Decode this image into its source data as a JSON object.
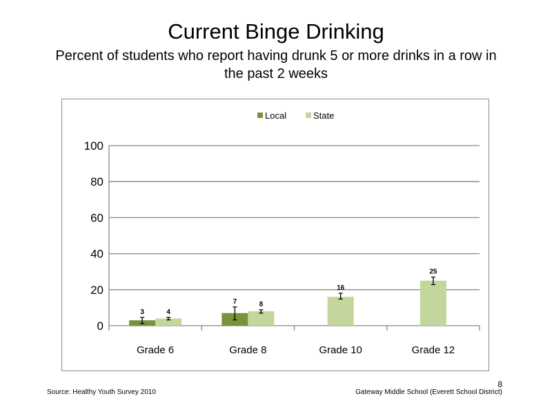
{
  "slide": {
    "title": "Current Binge Drinking",
    "subtitle": "Percent of students who report having drunk  5 or more drinks in a row in the past 2 weeks",
    "source": "Source: Healthy Youth Survey 2010",
    "school": "Gateway Middle  School  (Everett School District)",
    "page_number": "8"
  },
  "chart_data": {
    "type": "bar",
    "title": "",
    "xlabel": "",
    "ylabel": "",
    "categories": [
      "Grade 6",
      "Grade 8",
      "Grade 10",
      "Grade 12"
    ],
    "ylim": [
      0,
      100
    ],
    "yticks": [
      0,
      20,
      40,
      60,
      80,
      100
    ],
    "grid": true,
    "legend_position": "top-center",
    "series": [
      {
        "name": "Local",
        "color": "#77933c",
        "values": [
          3,
          7,
          null,
          null
        ],
        "labels": [
          "3",
          "7",
          "",
          ""
        ],
        "error_low": [
          1.2,
          3.2,
          null,
          null
        ],
        "error_high": [
          4.6,
          10.4,
          null,
          null
        ]
      },
      {
        "name": "State",
        "color": "#c3d69b",
        "values": [
          4,
          8,
          16,
          25
        ],
        "labels": [
          "4",
          "8",
          "16",
          "25"
        ],
        "error_low": [
          3.2,
          7.0,
          14.8,
          22.8
        ],
        "error_high": [
          4.6,
          8.8,
          18.0,
          27.0
        ]
      }
    ]
  }
}
